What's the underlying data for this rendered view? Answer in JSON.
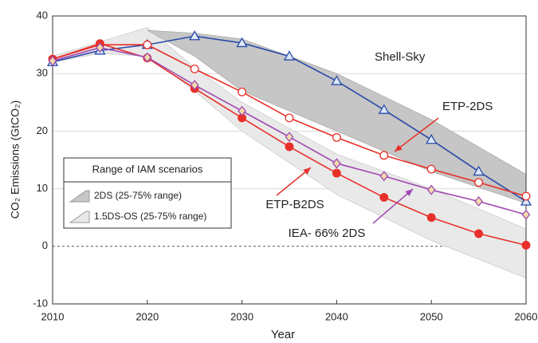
{
  "chart_data": {
    "type": "line",
    "x_label": "Year",
    "y_label": "CO₂ Emissions  (GtCO₂)",
    "x": [
      2010,
      2015,
      2020,
      2025,
      2030,
      2035,
      2040,
      2045,
      2050,
      2055,
      2060
    ],
    "xlim": [
      2010,
      2060
    ],
    "xticks": [
      2010,
      2020,
      2030,
      2040,
      2050,
      2060
    ],
    "ylim": [
      -10,
      40
    ],
    "yticks": [
      -10,
      0,
      10,
      20,
      30,
      40
    ],
    "grid": true,
    "series": [
      {
        "name": "Shell-Sky",
        "color": "#2a4aa8",
        "marker": "triangle",
        "values": [
          32,
          34,
          35,
          36.5,
          35.3,
          33,
          28.7,
          23.7,
          18.5,
          13,
          7.8
        ]
      },
      {
        "name": "ETP-2DS",
        "color": "#e8302a",
        "marker": "open-circle",
        "values": [
          32.5,
          35,
          35,
          30.8,
          26.8,
          22.3,
          18.9,
          15.8,
          13.4,
          11.1,
          8.7
        ]
      },
      {
        "name": "ETP-B2DS",
        "color": "#e8302a",
        "marker": "filled-circle",
        "values": [
          32.5,
          35.2,
          32.7,
          27.4,
          22.3,
          17.3,
          12.7,
          8.5,
          5,
          2.2,
          0.2
        ]
      },
      {
        "name": "IEA- 66% 2DS",
        "color": "#a04ab0",
        "marker": "diamond",
        "values": [
          32.2,
          34.5,
          32.8,
          28,
          23.5,
          19,
          14.4,
          12.2,
          9.8,
          7.8,
          5.5
        ]
      }
    ],
    "legend_title": "Range of IAM scenarios",
    "bands": [
      {
        "name": "1.5DS-OS (25-75% range)",
        "color": "#e9e9e9",
        "x": [
          2010,
          2015,
          2020,
          2025,
          2030,
          2040,
          2050,
          2060
        ],
        "upper": [
          33,
          35.5,
          38,
          31,
          25,
          16,
          10,
          3
        ],
        "lower": [
          32,
          33.5,
          33,
          27,
          20,
          9,
          1,
          -5.5
        ]
      },
      {
        "name": "2DS (25-75% range)",
        "color": "#c6c6c6",
        "x": [
          2020,
          2025,
          2030,
          2040,
          2050,
          2060
        ],
        "upper": [
          37.5,
          37,
          36,
          30,
          22,
          12.5
        ],
        "lower": [
          37.5,
          33,
          27,
          20,
          13,
          7.5
        ]
      }
    ]
  }
}
